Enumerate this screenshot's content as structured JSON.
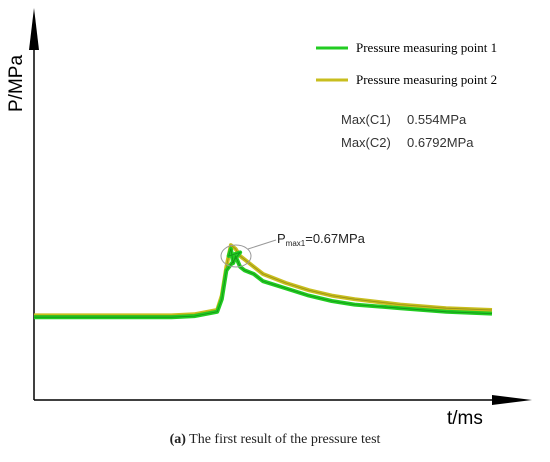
{
  "chart_data": {
    "type": "line",
    "title": "",
    "xlabel": "t/ms",
    "ylabel": "P/MPa",
    "grid": false,
    "legend_position": "top-right",
    "x_range": [
      0,
      100
    ],
    "y_range": [
      0,
      1
    ],
    "series": [
      {
        "name": "Pressure measuring point 1",
        "color": "#22cc22",
        "x": [
          0,
          10,
          20,
          30,
          35,
          40,
          41,
          42,
          45,
          42.5,
          43,
          43.5,
          44,
          45,
          46,
          48,
          50,
          55,
          60,
          65,
          70,
          80,
          90,
          100
        ],
        "y": [
          0.23,
          0.23,
          0.23,
          0.23,
          0.233,
          0.245,
          0.28,
          0.36,
          0.41,
          0.4,
          0.42,
          0.38,
          0.4,
          0.37,
          0.36,
          0.35,
          0.33,
          0.31,
          0.29,
          0.275,
          0.265,
          0.255,
          0.245,
          0.24
        ]
      },
      {
        "name": "Pressure measuring point 2",
        "color": "#c8be1e",
        "x": [
          0,
          10,
          20,
          30,
          35,
          40,
          41,
          42,
          43,
          44,
          45,
          46,
          48,
          50,
          55,
          60,
          65,
          70,
          80,
          90,
          100
        ],
        "y": [
          0.235,
          0.235,
          0.235,
          0.235,
          0.238,
          0.25,
          0.29,
          0.37,
          0.43,
          0.42,
          0.4,
          0.39,
          0.37,
          0.35,
          0.325,
          0.305,
          0.29,
          0.28,
          0.265,
          0.255,
          0.25
        ]
      }
    ],
    "stats": [
      {
        "label": "Max(C1)",
        "value": "0.554MPa"
      },
      {
        "label": "Max(C2)",
        "value": "0.6792MPa"
      }
    ],
    "annotation": {
      "text_main": "P",
      "text_sub": "max1",
      "text_value": "=0.67MPa"
    }
  },
  "caption": {
    "label": "(a)",
    "text": " The first result of the pressure test"
  }
}
